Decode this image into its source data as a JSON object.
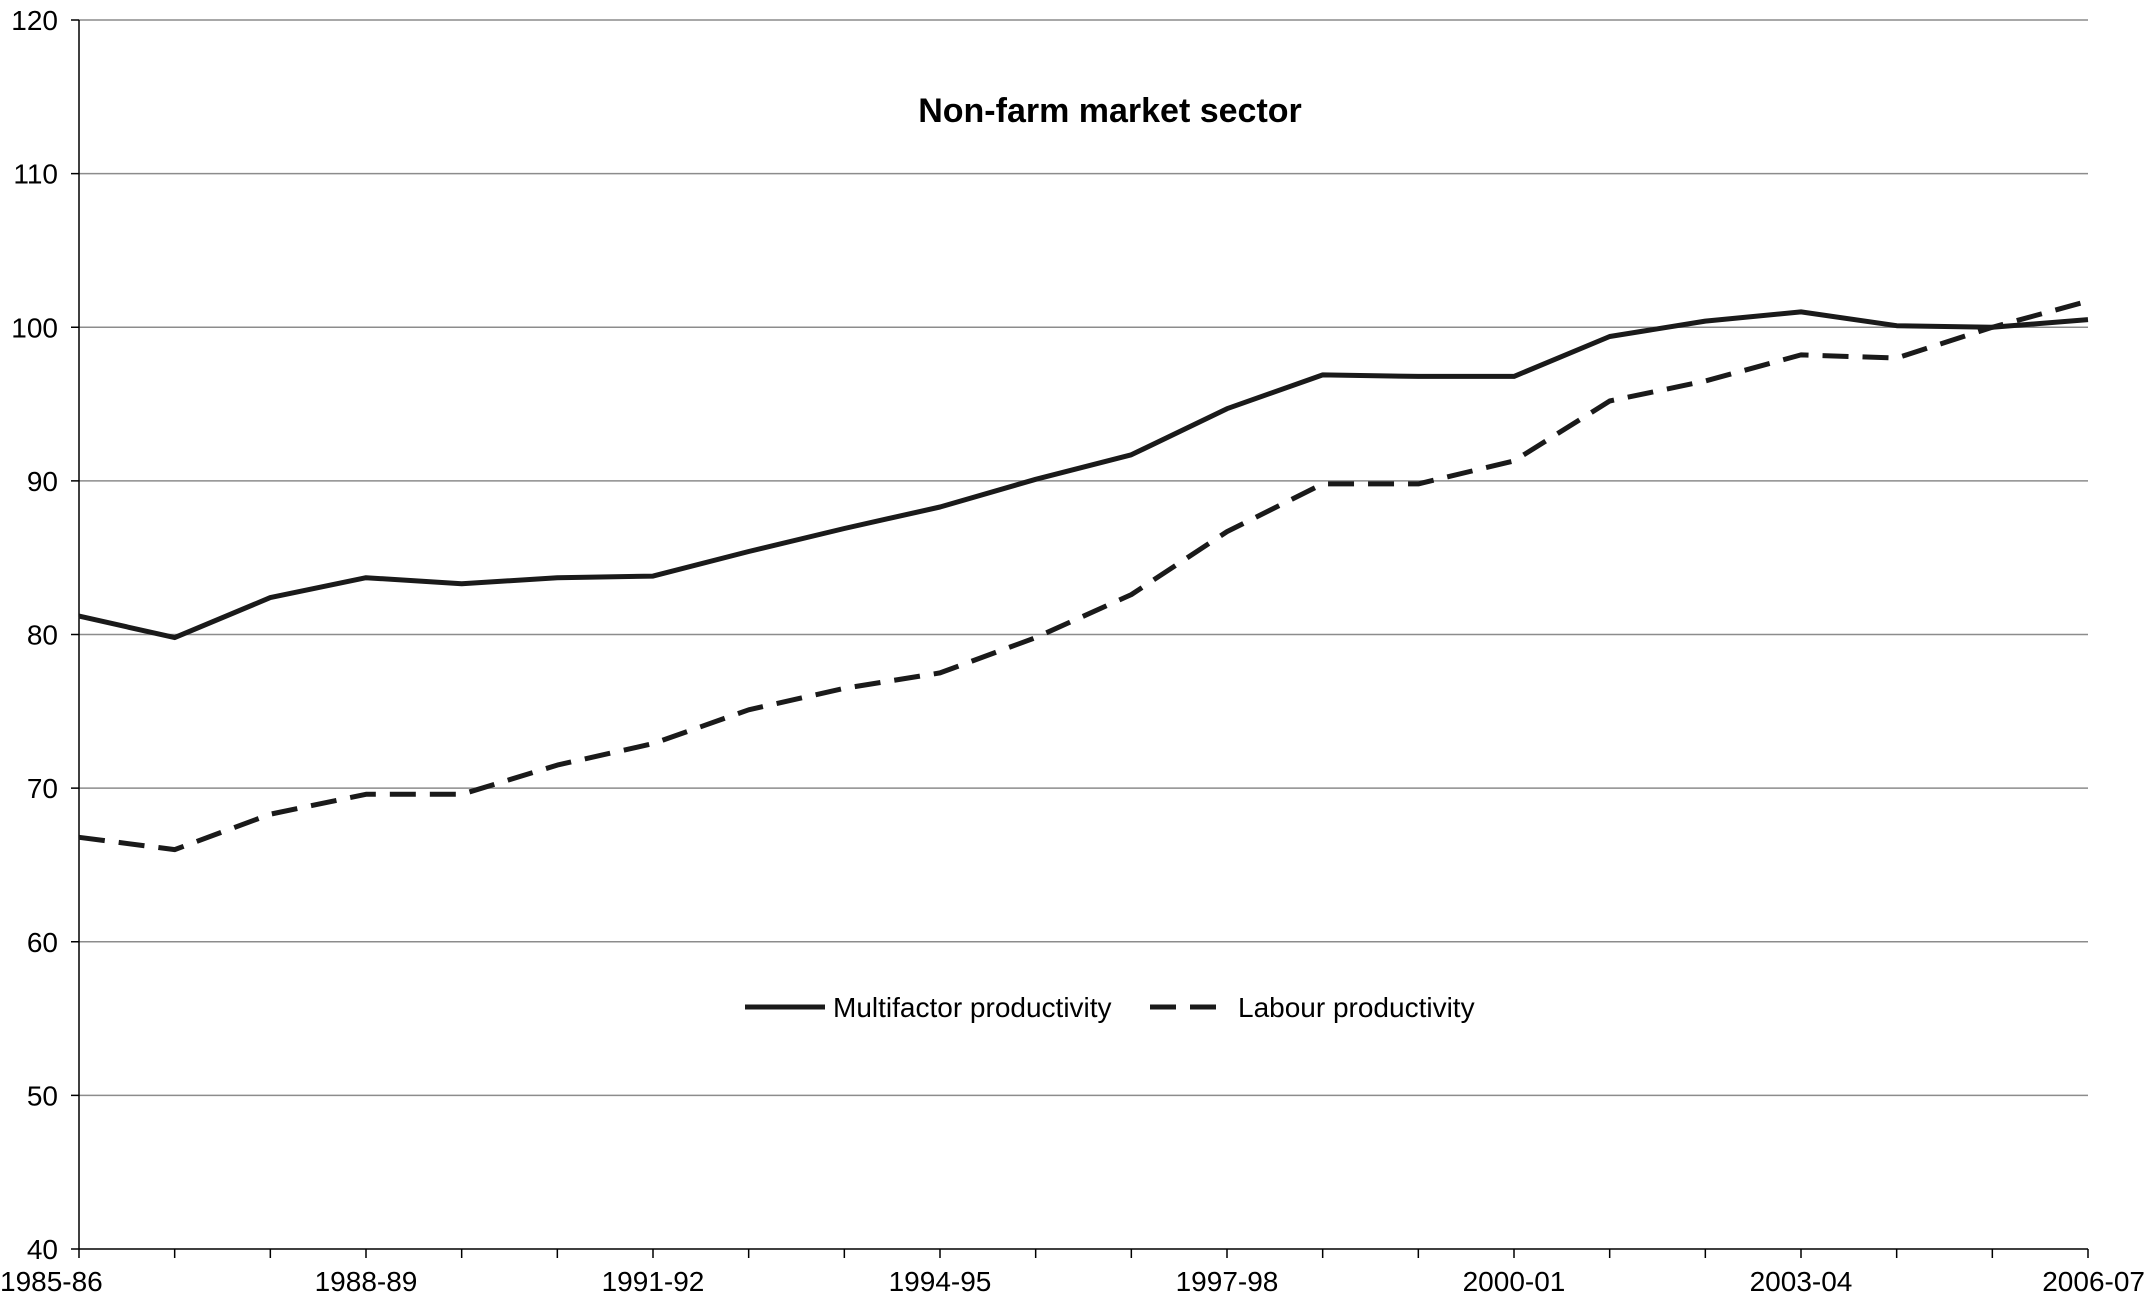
{
  "chart_data": {
    "type": "line",
    "title": "Non-farm market sector",
    "xlabel": "",
    "ylabel": "",
    "categories": [
      "1985-86",
      "1986-87",
      "1987-88",
      "1988-89",
      "1989-90",
      "1990-91",
      "1991-92",
      "1992-93",
      "1993-94",
      "1994-95",
      "1995-96",
      "1996-97",
      "1997-98",
      "1998-99",
      "1999-00",
      "2000-01",
      "2001-02",
      "2002-03",
      "2003-04",
      "2004-05",
      "2005-06",
      "2006-07"
    ],
    "x_tick_labels": [
      "1985-86",
      "",
      "",
      "1988-89",
      "",
      "",
      "1991-92",
      "",
      "",
      "1994-95",
      "",
      "",
      "1997-98",
      "",
      "",
      "2000-01",
      "",
      "",
      "2003-04",
      "",
      "",
      "2006-07"
    ],
    "ylim": [
      40,
      120
    ],
    "y_ticks": [
      40,
      50,
      60,
      70,
      80,
      90,
      100,
      110,
      120
    ],
    "grid": true,
    "legend_position": "center",
    "series": [
      {
        "name": "Multifactor productivity",
        "style": "solid",
        "color": "#1a1a1a",
        "values": [
          81.2,
          79.8,
          82.4,
          83.7,
          83.3,
          83.7,
          83.8,
          85.4,
          86.9,
          88.3,
          90.1,
          91.7,
          94.7,
          96.9,
          96.8,
          96.8,
          99.4,
          100.4,
          101.0,
          100.1,
          100.0,
          100.5
        ]
      },
      {
        "name": "Labour productivity",
        "style": "dashed",
        "color": "#1a1a1a",
        "values": [
          66.8,
          66.0,
          68.3,
          69.6,
          69.6,
          71.5,
          72.9,
          75.1,
          76.5,
          77.5,
          79.8,
          82.6,
          86.7,
          89.8,
          89.8,
          91.3,
          95.2,
          96.5,
          98.2,
          98.0,
          100.0,
          101.7
        ]
      }
    ]
  }
}
